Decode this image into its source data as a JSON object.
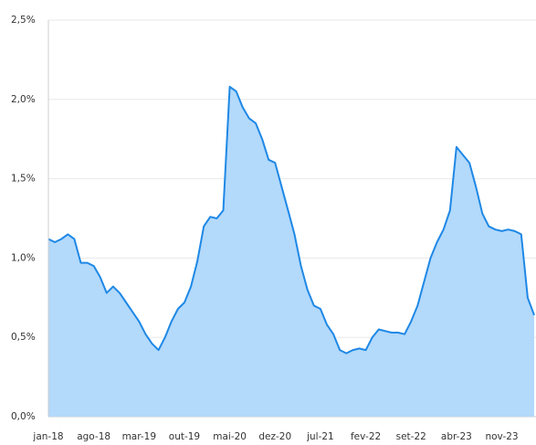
{
  "chart_data": {
    "type": "area",
    "categories": [
      "jan-18",
      null,
      null,
      null,
      null,
      null,
      null,
      "ago-18",
      null,
      null,
      null,
      null,
      null,
      null,
      "mar-19",
      null,
      null,
      null,
      null,
      null,
      null,
      "out-19",
      null,
      null,
      null,
      null,
      null,
      null,
      "mai-20",
      null,
      null,
      null,
      null,
      null,
      null,
      "dez-20",
      null,
      null,
      null,
      null,
      null,
      null,
      "jul-21",
      null,
      null,
      null,
      null,
      null,
      null,
      "fev-22",
      null,
      null,
      null,
      null,
      null,
      null,
      "set-22",
      null,
      null,
      null,
      null,
      null,
      null,
      "abr-23",
      null,
      null,
      null,
      null,
      null,
      null,
      "nov-23",
      null,
      null,
      null,
      null,
      null
    ],
    "values": [
      1.12,
      1.1,
      1.12,
      1.15,
      1.12,
      0.97,
      0.97,
      0.95,
      0.88,
      0.78,
      0.82,
      0.78,
      0.72,
      0.66,
      0.6,
      0.52,
      0.46,
      0.42,
      0.5,
      0.6,
      0.68,
      0.72,
      0.82,
      0.98,
      1.2,
      1.26,
      1.25,
      1.3,
      2.08,
      2.05,
      1.95,
      1.88,
      1.85,
      1.75,
      1.62,
      1.6,
      1.45,
      1.3,
      1.15,
      0.95,
      0.8,
      0.7,
      0.68,
      0.58,
      0.52,
      0.42,
      0.4,
      0.42,
      0.43,
      0.42,
      0.5,
      0.55,
      0.54,
      0.53,
      0.53,
      0.52,
      0.6,
      0.7,
      0.85,
      1.0,
      1.1,
      1.18,
      1.3,
      1.7,
      1.65,
      1.6,
      1.45,
      1.28,
      1.2,
      1.18,
      1.17,
      1.18,
      1.17,
      1.15,
      0.75,
      0.64
    ],
    "color": "#1e88e5",
    "fill": "#b3d9fb",
    "ylim": [
      0,
      2.5
    ],
    "yticks": [
      {
        "value": 0,
        "label": "0,0%"
      },
      {
        "value": 0.5,
        "label": "0,5%"
      },
      {
        "value": 1,
        "label": "1,0%"
      },
      {
        "value": 1.5,
        "label": "1,5%"
      },
      {
        "value": 2,
        "label": "2,0%"
      },
      {
        "value": 2.5,
        "label": "2,5%"
      }
    ],
    "grid": true
  }
}
